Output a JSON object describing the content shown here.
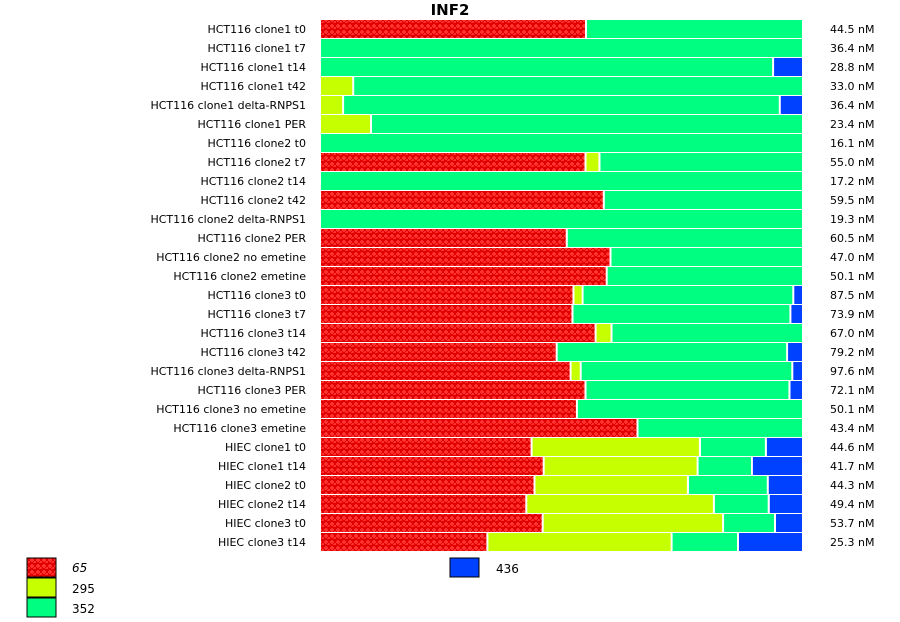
{
  "chart_data": {
    "type": "bar",
    "orientation": "horizontal",
    "stacked": true,
    "normalized": true,
    "title": "INF2",
    "xlabel": "",
    "ylabel": "",
    "xlim": [
      0,
      1
    ],
    "grid": false,
    "legend_position": "bottom",
    "series": [
      {
        "name": "65",
        "color": "#e80000",
        "pattern": "dotted-red",
        "italic": true
      },
      {
        "name": "295",
        "color": "#c6ff00"
      },
      {
        "name": "352",
        "color": "#00ff80"
      },
      {
        "name": "436",
        "color": "#0040ff"
      }
    ],
    "categories": [
      "HCT116 clone1 t0",
      "HCT116 clone1 t7",
      "HCT116 clone1 t14",
      "HCT116 clone1 t42",
      "HCT116 clone1 delta-RNPS1",
      "HCT116 clone1 PER",
      "HCT116 clone2 t0",
      "HCT116 clone2 t7",
      "HCT116 clone2 t14",
      "HCT116 clone2 t42",
      "HCT116 clone2 delta-RNPS1",
      "HCT116 clone2 PER",
      "HCT116 clone2 no emetine",
      "HCT116 clone2 emetine",
      "HCT116 clone3 t0",
      "HCT116 clone3 t7",
      "HCT116 clone3 t14",
      "HCT116 clone3 t42",
      "HCT116 clone3 delta-RNPS1",
      "HCT116 clone3 PER",
      "HCT116 clone3 no emetine",
      "HCT116 clone3 emetine",
      "HIEC clone1 t0",
      "HIEC clone1 t14",
      "HIEC clone2 t0",
      "HIEC clone2 t14",
      "HIEC clone3 t0",
      "HIEC clone3 t14"
    ],
    "fractions": [
      [
        0.553,
        0.0,
        0.447,
        0.0
      ],
      [
        0.0,
        0.0,
        1.0,
        0.0
      ],
      [
        0.0,
        0.0,
        0.942,
        0.058
      ],
      [
        0.0,
        0.069,
        0.931,
        0.0
      ],
      [
        0.0,
        0.048,
        0.908,
        0.044
      ],
      [
        0.0,
        0.106,
        0.894,
        0.0
      ],
      [
        0.0,
        0.0,
        1.0,
        0.0
      ],
      [
        0.552,
        0.029,
        0.419,
        0.0
      ],
      [
        0.0,
        0.0,
        1.0,
        0.0
      ],
      [
        0.59,
        0.0,
        0.41,
        0.0
      ],
      [
        0.0,
        0.0,
        1.0,
        0.0
      ],
      [
        0.513,
        0.0,
        0.487,
        0.0
      ],
      [
        0.604,
        0.0,
        0.396,
        0.0
      ],
      [
        0.596,
        0.0,
        0.404,
        0.0
      ],
      [
        0.527,
        0.019,
        0.438,
        0.016
      ],
      [
        0.525,
        0.0,
        0.453,
        0.022
      ],
      [
        0.573,
        0.033,
        0.394,
        0.0
      ],
      [
        0.492,
        0.0,
        0.479,
        0.029
      ],
      [
        0.521,
        0.021,
        0.44,
        0.018
      ],
      [
        0.552,
        0.0,
        0.424,
        0.024
      ],
      [
        0.534,
        0.0,
        0.466,
        0.0
      ],
      [
        0.66,
        0.0,
        0.34,
        0.0
      ],
      [
        0.44,
        0.35,
        0.137,
        0.073
      ],
      [
        0.465,
        0.32,
        0.113,
        0.102
      ],
      [
        0.446,
        0.319,
        0.166,
        0.069
      ],
      [
        0.429,
        0.39,
        0.114,
        0.067
      ],
      [
        0.463,
        0.375,
        0.108,
        0.054
      ],
      [
        0.348,
        0.383,
        0.138,
        0.131
      ]
    ],
    "totals": [
      "44.5 nM",
      "36.4 nM",
      "28.8 nM",
      "33.0 nM",
      "36.4 nM",
      "23.4 nM",
      "16.1 nM",
      "55.0 nM",
      "17.2 nM",
      "59.5 nM",
      "19.3 nM",
      "60.5 nM",
      "47.0 nM",
      "50.1 nM",
      "87.5 nM",
      "73.9 nM",
      "67.0 nM",
      "79.2 nM",
      "97.6 nM",
      "72.1 nM",
      "50.1 nM",
      "43.4 nM",
      "44.6 nM",
      "41.7 nM",
      "44.3 nM",
      "49.4 nM",
      "53.7 nM",
      "25.3 nM"
    ]
  }
}
